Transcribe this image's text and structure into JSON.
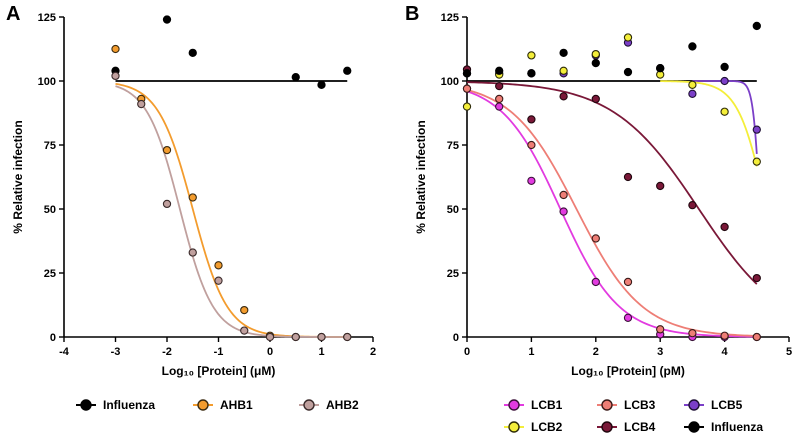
{
  "chart_data": [
    {
      "panel_label": "A",
      "type": "scatter",
      "xlabel": "Log₁₀ [Protein] (μM)",
      "ylabel": "% Relative infection",
      "xlim": [
        -4,
        2
      ],
      "ylim": [
        0,
        125
      ],
      "xticks": [
        -4,
        -3,
        -2,
        -1,
        0,
        1,
        2
      ],
      "yticks": [
        0,
        25,
        50,
        75,
        100,
        125
      ],
      "reference_line": {
        "y": 100,
        "x_range": [
          -3,
          1.5
        ],
        "color": "#000000"
      },
      "series": [
        {
          "name": "Influenza",
          "color": "#000000",
          "edge": "#000000",
          "points": [
            [
              -3,
              104
            ],
            [
              -2,
              124
            ],
            [
              -1.5,
              111
            ],
            [
              0.5,
              101.5
            ],
            [
              1,
              98.5
            ],
            [
              1.5,
              104
            ]
          ]
        },
        {
          "name": "AHB1",
          "color": "#f39c2e",
          "edge": "#3a2a10",
          "points": [
            [
              -3,
              112.5
            ],
            [
              -2.5,
              93
            ],
            [
              -2,
              73
            ],
            [
              -1.5,
              54.5
            ],
            [
              -1,
              28
            ],
            [
              -0.5,
              10.5
            ],
            [
              0,
              0.5
            ],
            [
              0.5,
              0
            ],
            [
              1,
              0
            ],
            [
              1.5,
              0
            ]
          ],
          "fit": {
            "ec50": -1.5,
            "hill": 1.3,
            "xmin": -3,
            "xmax": 1.5
          }
        },
        {
          "name": "AHB2",
          "color": "#c0a09e",
          "edge": "#3a2a2a",
          "points": [
            [
              -3,
              102
            ],
            [
              -2.5,
              91
            ],
            [
              -2,
              52
            ],
            [
              -1.5,
              33
            ],
            [
              -1,
              22
            ],
            [
              -0.5,
              2.5
            ],
            [
              0,
              0
            ],
            [
              0.5,
              0
            ],
            [
              1,
              0
            ],
            [
              1.5,
              0
            ]
          ],
          "fit": {
            "ec50": -1.75,
            "hill": 1.35,
            "xmin": -3,
            "xmax": 1.5
          }
        }
      ],
      "legend": [
        "Influenza",
        "AHB1",
        "AHB2"
      ]
    },
    {
      "panel_label": "B",
      "type": "scatter",
      "xlabel": "Log₁₀ [Protein] (pM)",
      "ylabel": "% Relative infection",
      "xlim": [
        0,
        5
      ],
      "ylim": [
        0,
        125
      ],
      "xticks": [
        0,
        1,
        2,
        3,
        4,
        5
      ],
      "yticks": [
        0,
        25,
        50,
        75,
        100,
        125
      ],
      "reference_line": {
        "y": 100,
        "x_range": [
          0,
          4.5
        ],
        "color": "#000000"
      },
      "series": [
        {
          "name": "LCB1",
          "color": "#e23be0",
          "edge": "#3a1038",
          "points": [
            [
              0,
              97
            ],
            [
              0.5,
              90
            ],
            [
              1,
              61
            ],
            [
              1.5,
              49
            ],
            [
              2,
              21.5
            ],
            [
              2.5,
              7.5
            ],
            [
              3,
              1
            ],
            [
              3.5,
              0
            ],
            [
              4,
              0
            ],
            [
              4.5,
              0
            ]
          ],
          "fit": {
            "ec50": 1.45,
            "hill": 0.95,
            "xmin": 0,
            "xmax": 4.5
          }
        },
        {
          "name": "LCB3",
          "color": "#ee7e76",
          "edge": "#3a1a18",
          "points": [
            [
              0,
              97
            ],
            [
              0.5,
              93
            ],
            [
              1,
              75
            ],
            [
              1.5,
              55.5
            ],
            [
              2,
              38.5
            ],
            [
              2.5,
              21.5
            ],
            [
              3,
              3
            ],
            [
              3.5,
              1.5
            ],
            [
              4,
              0.5
            ],
            [
              4.5,
              0
            ]
          ],
          "fit": {
            "ec50": 1.7,
            "hill": 0.85,
            "xmin": 0,
            "xmax": 4.5
          }
        },
        {
          "name": "LCB5",
          "color": "#7b3fc8",
          "edge": "#1e1034",
          "points": [
            [
              0,
              103
            ],
            [
              0.5,
              103
            ],
            [
              1,
              103
            ],
            [
              1.5,
              103
            ],
            [
              2,
              110
            ],
            [
              2.5,
              115
            ],
            [
              3,
              105
            ],
            [
              3.5,
              95
            ],
            [
              4,
              100
            ],
            [
              4.5,
              81
            ]
          ],
          "fit": {
            "ec50": 4.55,
            "hill": 8,
            "xmin": 3.5,
            "xmax": 4.5
          }
        },
        {
          "name": "LCB2",
          "color": "#f4ee3a",
          "edge": "#2e2c08",
          "points": [
            [
              0,
              90
            ],
            [
              0.5,
              102.5
            ],
            [
              1,
              110
            ],
            [
              1.5,
              104
            ],
            [
              2,
              110.5
            ],
            [
              2.5,
              117
            ],
            [
              3,
              102.5
            ],
            [
              3.5,
              98.5
            ],
            [
              4,
              88
            ],
            [
              4.5,
              68.5
            ]
          ],
          "fit": {
            "ec50": 4.65,
            "hill": 2,
            "xmin": 3,
            "xmax": 4.5
          }
        },
        {
          "name": "LCB4",
          "color": "#7a1838",
          "edge": "#20060e",
          "points": [
            [
              0,
              104.5
            ],
            [
              0.5,
              98
            ],
            [
              1,
              85
            ],
            [
              1.5,
              94
            ],
            [
              2,
              93
            ],
            [
              2.5,
              62.5
            ],
            [
              3,
              59
            ],
            [
              3.5,
              51.5
            ],
            [
              4,
              43
            ],
            [
              4.5,
              23
            ]
          ],
          "fit": {
            "ec50": 3.6,
            "hill": 0.65,
            "xmin": 0,
            "xmax": 4.5
          }
        },
        {
          "name": "Influenza",
          "color": "#000000",
          "edge": "#000000",
          "points": [
            [
              0,
              103
            ],
            [
              0.5,
              104
            ],
            [
              1,
              103
            ],
            [
              1.5,
              111
            ],
            [
              2,
              107
            ],
            [
              2.5,
              103.5
            ],
            [
              3,
              105
            ],
            [
              3.5,
              113.5
            ],
            [
              4,
              105.5
            ],
            [
              4.5,
              121.5
            ]
          ]
        }
      ],
      "legend": [
        "LCB1",
        "LCB3",
        "LCB5",
        "LCB2",
        "LCB4",
        "Influenza"
      ]
    }
  ]
}
